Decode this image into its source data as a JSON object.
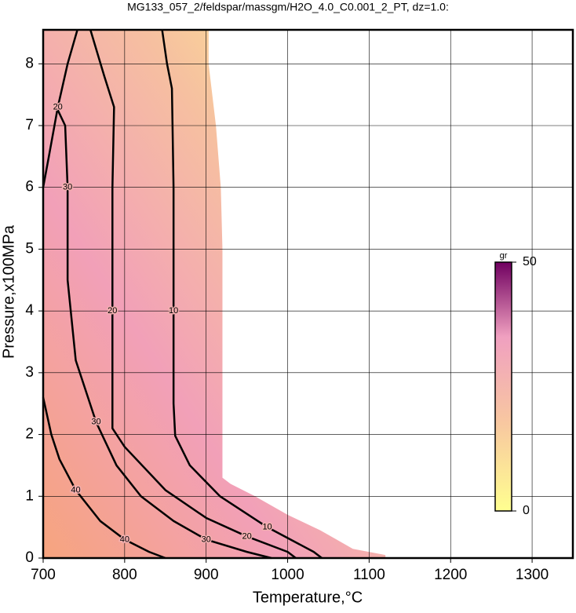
{
  "chart_data": {
    "type": "contour",
    "title": "MG133_057_2/feldspar/massgm/H2O_4.0_C0.001_2_PT, dz=1.0:",
    "x_label": "Temperature,°C",
    "y_label": "Pressure,x100MPa",
    "xlim": [
      700,
      1350
    ],
    "ylim": [
      0,
      8.55
    ],
    "xticks": [
      700,
      800,
      900,
      1000,
      1100,
      1200,
      1300
    ],
    "yticks": [
      0,
      1,
      2,
      3,
      4,
      5,
      6,
      7,
      8
    ],
    "grid": true,
    "region": {
      "x": [
        700,
        700,
        903,
        903,
        912,
        918,
        920,
        920,
        920,
        930,
        960,
        1000,
        1040,
        1060,
        1080,
        1120,
        1120
      ],
      "y": [
        0,
        8.55,
        8.55,
        8.0,
        7.0,
        6.0,
        5.0,
        3.0,
        1.3,
        1.2,
        1.0,
        0.7,
        0.45,
        0.3,
        0.15,
        0.05,
        0
      ]
    },
    "contours": [
      {
        "level": 10,
        "x": [
          846,
          852,
          858,
          860,
          860,
          860,
          862,
          880,
          917,
          975,
          1032,
          1042
        ],
        "y": [
          8.55,
          8.0,
          7.6,
          6.0,
          4.0,
          2.5,
          1.98,
          1.5,
          1.0,
          0.5,
          0.1,
          0
        ]
      },
      {
        "level": 20,
        "x": [
          758,
          775,
          787,
          785,
          785,
          785,
          800,
          850,
          900,
          950,
          1000,
          1010
        ],
        "y": [
          8.55,
          7.8,
          7.3,
          6.0,
          4.0,
          2.1,
          1.8,
          1.1,
          0.65,
          0.35,
          0.1,
          0
        ]
      },
      {
        "level": 20,
        "x": [
          742,
          730,
          718,
          707,
          700
        ],
        "y": [
          8.55,
          8.0,
          7.3,
          6.5,
          6.0
        ]
      },
      {
        "level": 30,
        "x": [
          718,
          727,
          730,
          730,
          740,
          765,
          790,
          820,
          860,
          900,
          950,
          980
        ],
        "y": [
          7.25,
          7.0,
          6.0,
          4.5,
          3.2,
          2.2,
          1.5,
          1.0,
          0.6,
          0.3,
          0.1,
          0
        ]
      },
      {
        "level": 40,
        "x": [
          700,
          710,
          720,
          740,
          770,
          800,
          830,
          850
        ],
        "y": [
          2.6,
          2.0,
          1.6,
          1.1,
          0.6,
          0.3,
          0.1,
          0
        ]
      }
    ],
    "colorbar": {
      "label": "gr",
      "lim": [
        0,
        50
      ],
      "ticks": [
        0,
        50
      ]
    }
  }
}
